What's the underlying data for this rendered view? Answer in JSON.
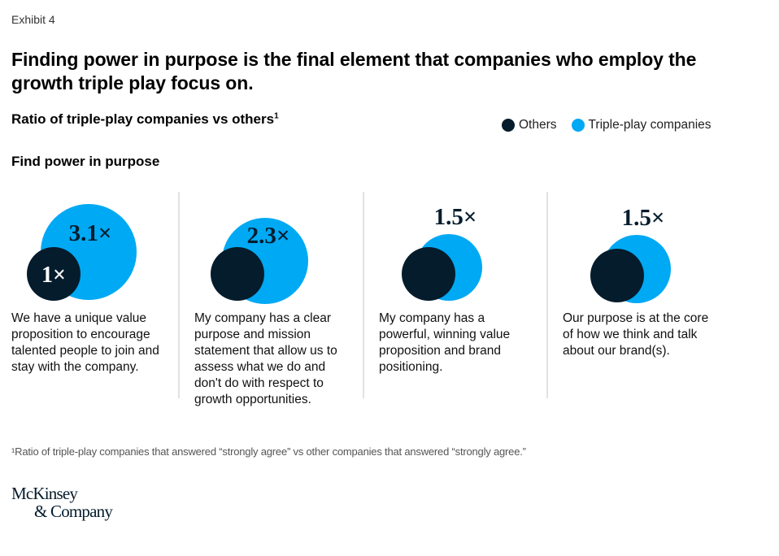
{
  "header": {
    "exhibit": "Exhibit 4",
    "title": "Finding power in purpose is the final element that companies who employ the growth triple play focus on.",
    "subtitle": "Ratio of triple-play companies vs others",
    "subtitle_footnote_mark": "1",
    "section": "Find power in purpose"
  },
  "legend": [
    {
      "label": "Others",
      "color": "#051c2c"
    },
    {
      "label": "Triple-play companies",
      "color": "#00a9f4"
    }
  ],
  "colors": {
    "others": "#051c2c",
    "triple_play": "#00a9f4",
    "divider": "#d9d9d9",
    "label_dark": "#051c2c",
    "label_light": "#ffffff"
  },
  "chart_data": {
    "type": "bubble-comparison",
    "title": "Ratio of triple-play companies vs others",
    "section": "Find power in purpose",
    "series": [
      {
        "name": "Others",
        "values": [
          1,
          1,
          1,
          1
        ]
      },
      {
        "name": "Triple-play companies",
        "values": [
          3.1,
          2.3,
          1.5,
          1.5
        ]
      }
    ],
    "categories": [
      "We have a unique value proposition to encourage talented people to join and stay with the company.",
      "My company has a clear purpose and mission statement that allow us to assess what we do and don't do with respect to growth opportunities.",
      "My company has a powerful, winning value proposition and brand positioning.",
      "Our purpose is at the core of how we think and talk about our brand(s)."
    ],
    "data_labels": [
      "3.1×",
      "2.3×",
      "1.5×",
      "1.5×"
    ],
    "baseline_label": "1×",
    "legend_position": "top-right"
  },
  "footnote": "¹Ratio of triple-play companies that answered “strongly agree” vs other companies that answered “strongly agree.”",
  "logo": {
    "line1": "McKinsey",
    "line2": "& Company"
  }
}
